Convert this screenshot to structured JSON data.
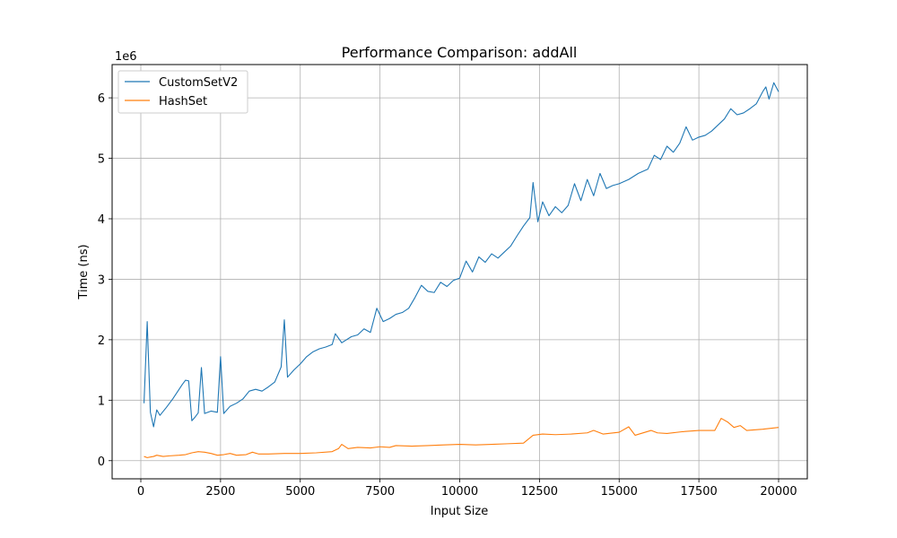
{
  "chart_data": {
    "type": "line",
    "title": "Performance Comparison: addAll",
    "xlabel": "Input Size",
    "ylabel": "Time (ns)",
    "y_scale_label": "1e6",
    "xlim": [
      -900,
      20900
    ],
    "ylim": [
      -0.3,
      6.55
    ],
    "x_ticks": [
      0,
      2500,
      5000,
      7500,
      10000,
      12500,
      15000,
      17500,
      20000
    ],
    "x_tick_labels": [
      "0",
      "2500",
      "5000",
      "7500",
      "10000",
      "12500",
      "15000",
      "17500",
      "20000"
    ],
    "y_ticks": [
      0,
      1,
      2,
      3,
      4,
      5,
      6
    ],
    "y_tick_labels": [
      "0",
      "1",
      "2",
      "3",
      "4",
      "5",
      "6"
    ],
    "grid": true,
    "legend_position": "top-left",
    "series": [
      {
        "name": "CustomSetV2",
        "color": "#1f77b4",
        "points": [
          [
            100,
            0.95
          ],
          [
            200,
            2.3
          ],
          [
            300,
            0.8
          ],
          [
            400,
            0.56
          ],
          [
            500,
            0.84
          ],
          [
            600,
            0.75
          ],
          [
            800,
            0.88
          ],
          [
            1000,
            1.02
          ],
          [
            1200,
            1.18
          ],
          [
            1300,
            1.26
          ],
          [
            1400,
            1.33
          ],
          [
            1500,
            1.32
          ],
          [
            1600,
            0.66
          ],
          [
            1700,
            0.72
          ],
          [
            1800,
            0.79
          ],
          [
            1900,
            1.54
          ],
          [
            2000,
            0.78
          ],
          [
            2200,
            0.82
          ],
          [
            2400,
            0.8
          ],
          [
            2500,
            1.72
          ],
          [
            2600,
            0.78
          ],
          [
            2800,
            0.9
          ],
          [
            3000,
            0.95
          ],
          [
            3200,
            1.02
          ],
          [
            3400,
            1.15
          ],
          [
            3600,
            1.18
          ],
          [
            3800,
            1.15
          ],
          [
            4000,
            1.22
          ],
          [
            4200,
            1.3
          ],
          [
            4400,
            1.55
          ],
          [
            4500,
            2.33
          ],
          [
            4600,
            1.38
          ],
          [
            4800,
            1.5
          ],
          [
            5000,
            1.6
          ],
          [
            5200,
            1.72
          ],
          [
            5400,
            1.8
          ],
          [
            5600,
            1.85
          ],
          [
            5800,
            1.88
          ],
          [
            6000,
            1.92
          ],
          [
            6100,
            2.1
          ],
          [
            6300,
            1.95
          ],
          [
            6600,
            2.05
          ],
          [
            6800,
            2.08
          ],
          [
            7000,
            2.18
          ],
          [
            7200,
            2.12
          ],
          [
            7400,
            2.52
          ],
          [
            7600,
            2.3
          ],
          [
            7800,
            2.35
          ],
          [
            8000,
            2.42
          ],
          [
            8200,
            2.45
          ],
          [
            8400,
            2.52
          ],
          [
            8600,
            2.7
          ],
          [
            8800,
            2.9
          ],
          [
            9000,
            2.8
          ],
          [
            9200,
            2.78
          ],
          [
            9400,
            2.95
          ],
          [
            9600,
            2.88
          ],
          [
            9800,
            2.98
          ],
          [
            10000,
            3.02
          ],
          [
            10200,
            3.3
          ],
          [
            10400,
            3.12
          ],
          [
            10600,
            3.37
          ],
          [
            10800,
            3.28
          ],
          [
            11000,
            3.42
          ],
          [
            11200,
            3.35
          ],
          [
            11400,
            3.45
          ],
          [
            11600,
            3.55
          ],
          [
            11800,
            3.72
          ],
          [
            12000,
            3.88
          ],
          [
            12200,
            4.02
          ],
          [
            12300,
            4.6
          ],
          [
            12450,
            3.95
          ],
          [
            12600,
            4.28
          ],
          [
            12800,
            4.05
          ],
          [
            13000,
            4.2
          ],
          [
            13200,
            4.1
          ],
          [
            13400,
            4.22
          ],
          [
            13600,
            4.58
          ],
          [
            13800,
            4.3
          ],
          [
            14000,
            4.65
          ],
          [
            14200,
            4.38
          ],
          [
            14400,
            4.75
          ],
          [
            14600,
            4.5
          ],
          [
            14800,
            4.55
          ],
          [
            15000,
            4.58
          ],
          [
            15300,
            4.65
          ],
          [
            15600,
            4.75
          ],
          [
            15900,
            4.82
          ],
          [
            16100,
            5.05
          ],
          [
            16300,
            4.98
          ],
          [
            16500,
            5.2
          ],
          [
            16700,
            5.1
          ],
          [
            16900,
            5.25
          ],
          [
            17100,
            5.52
          ],
          [
            17300,
            5.3
          ],
          [
            17500,
            5.35
          ],
          [
            17700,
            5.38
          ],
          [
            17900,
            5.45
          ],
          [
            18100,
            5.55
          ],
          [
            18300,
            5.65
          ],
          [
            18500,
            5.82
          ],
          [
            18700,
            5.72
          ],
          [
            18900,
            5.75
          ],
          [
            19100,
            5.82
          ],
          [
            19300,
            5.9
          ],
          [
            19500,
            6.1
          ],
          [
            19600,
            6.18
          ],
          [
            19700,
            5.98
          ],
          [
            19850,
            6.25
          ],
          [
            20000,
            6.1
          ]
        ]
      },
      {
        "name": "HashSet",
        "color": "#ff7f0e",
        "points": [
          [
            100,
            0.07
          ],
          [
            200,
            0.05
          ],
          [
            300,
            0.06
          ],
          [
            400,
            0.07
          ],
          [
            500,
            0.09
          ],
          [
            700,
            0.07
          ],
          [
            900,
            0.08
          ],
          [
            1200,
            0.09
          ],
          [
            1400,
            0.1
          ],
          [
            1600,
            0.13
          ],
          [
            1800,
            0.15
          ],
          [
            2000,
            0.14
          ],
          [
            2200,
            0.12
          ],
          [
            2400,
            0.09
          ],
          [
            2600,
            0.1
          ],
          [
            2800,
            0.12
          ],
          [
            3000,
            0.09
          ],
          [
            3300,
            0.1
          ],
          [
            3500,
            0.14
          ],
          [
            3700,
            0.11
          ],
          [
            4000,
            0.11
          ],
          [
            4500,
            0.12
          ],
          [
            5000,
            0.12
          ],
          [
            5500,
            0.13
          ],
          [
            6000,
            0.15
          ],
          [
            6200,
            0.2
          ],
          [
            6300,
            0.27
          ],
          [
            6500,
            0.2
          ],
          [
            6800,
            0.22
          ],
          [
            7200,
            0.21
          ],
          [
            7500,
            0.23
          ],
          [
            7800,
            0.22
          ],
          [
            8000,
            0.25
          ],
          [
            8500,
            0.24
          ],
          [
            9000,
            0.25
          ],
          [
            9500,
            0.26
          ],
          [
            10000,
            0.27
          ],
          [
            10500,
            0.26
          ],
          [
            11000,
            0.27
          ],
          [
            11500,
            0.28
          ],
          [
            12000,
            0.29
          ],
          [
            12300,
            0.42
          ],
          [
            12600,
            0.44
          ],
          [
            13000,
            0.43
          ],
          [
            13500,
            0.44
          ],
          [
            14000,
            0.46
          ],
          [
            14200,
            0.5
          ],
          [
            14500,
            0.44
          ],
          [
            15000,
            0.47
          ],
          [
            15300,
            0.56
          ],
          [
            15500,
            0.42
          ],
          [
            16000,
            0.5
          ],
          [
            16200,
            0.46
          ],
          [
            16500,
            0.45
          ],
          [
            17000,
            0.48
          ],
          [
            17500,
            0.5
          ],
          [
            18000,
            0.5
          ],
          [
            18200,
            0.7
          ],
          [
            18400,
            0.64
          ],
          [
            18600,
            0.55
          ],
          [
            18800,
            0.58
          ],
          [
            19000,
            0.5
          ],
          [
            19500,
            0.52
          ],
          [
            20000,
            0.55
          ]
        ]
      }
    ]
  }
}
